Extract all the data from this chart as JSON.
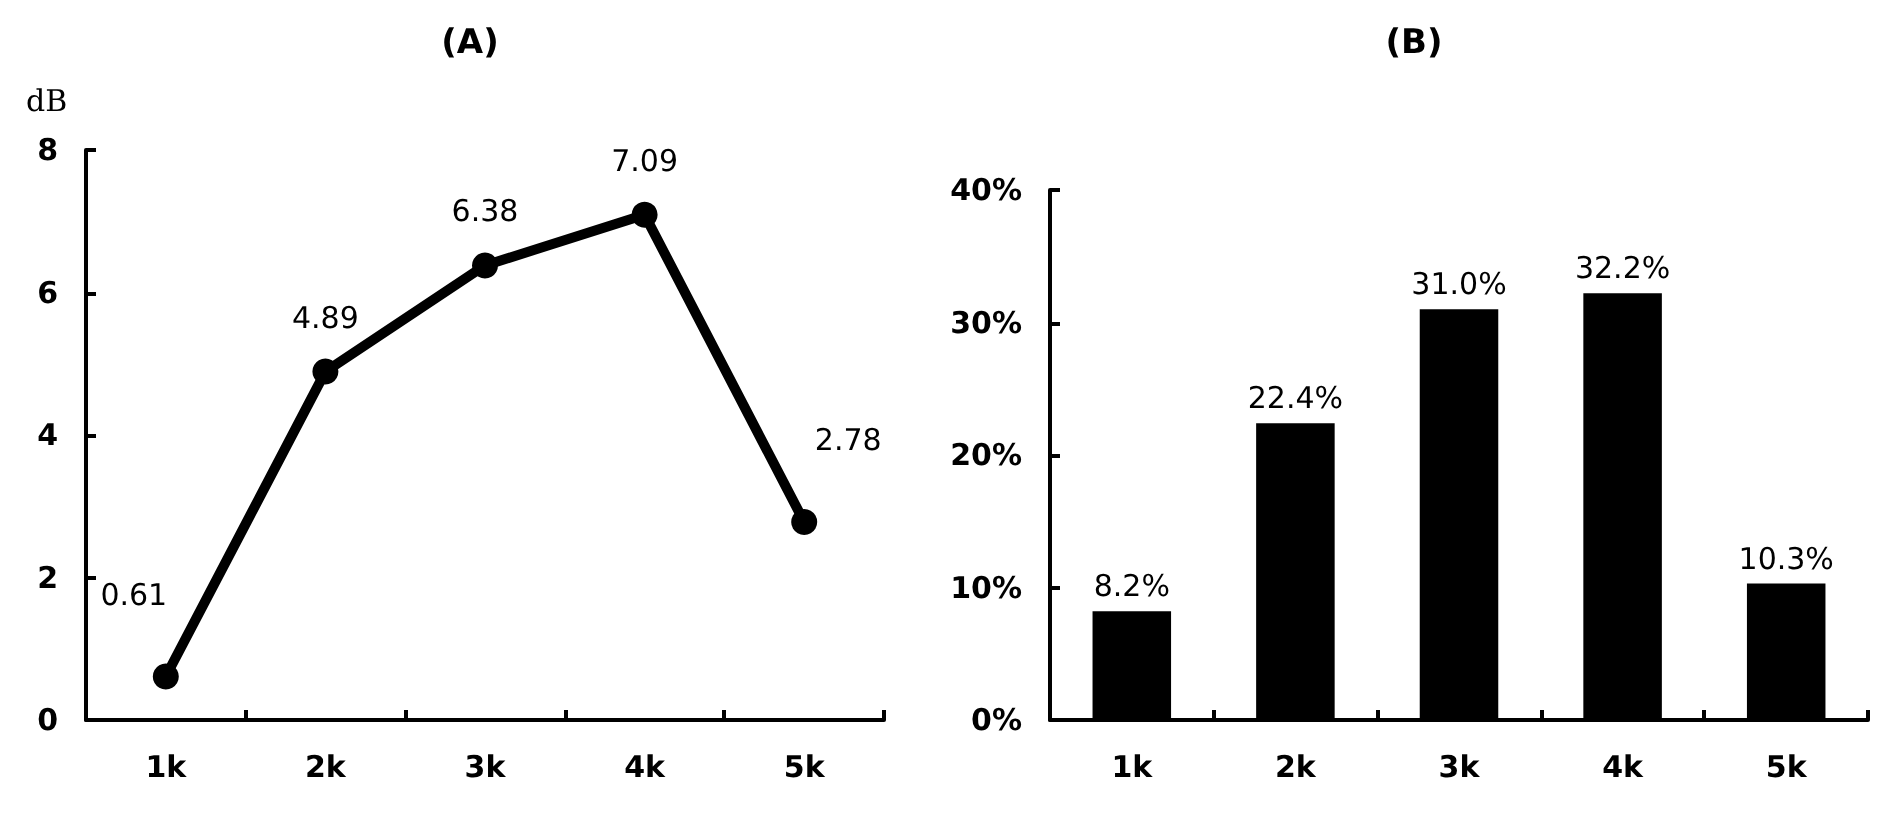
{
  "chart_data": [
    {
      "type": "line",
      "title": "(A)",
      "ylabel": "dB",
      "categories": [
        "1k",
        "2k",
        "3k",
        "4k",
        "5k"
      ],
      "values": [
        0.61,
        4.89,
        6.38,
        7.09,
        2.78
      ],
      "color": "#000000",
      "ylim": [
        0,
        8
      ],
      "yticks": [
        0,
        2,
        4,
        6,
        8
      ],
      "grid": false,
      "marker": "circle",
      "line_style": "solid",
      "data_labels": true
    },
    {
      "type": "bar",
      "title": "(B)",
      "categories": [
        "1k",
        "2k",
        "3k",
        "4k",
        "5k"
      ],
      "values": [
        8.2,
        22.4,
        31.0,
        32.2,
        10.3
      ],
      "value_labels": [
        "8.2%",
        "22.4%",
        "31.0%",
        "32.2%",
        "10.3%"
      ],
      "color": "#000000",
      "ylim": [
        0,
        40
      ],
      "yticks": [
        {
          "value": 0,
          "label": "0%"
        },
        {
          "value": 10,
          "label": "10%"
        },
        {
          "value": 20,
          "label": "20%"
        },
        {
          "value": 30,
          "label": "30%"
        },
        {
          "value": 40,
          "label": "40%"
        }
      ],
      "grid": false
    }
  ]
}
